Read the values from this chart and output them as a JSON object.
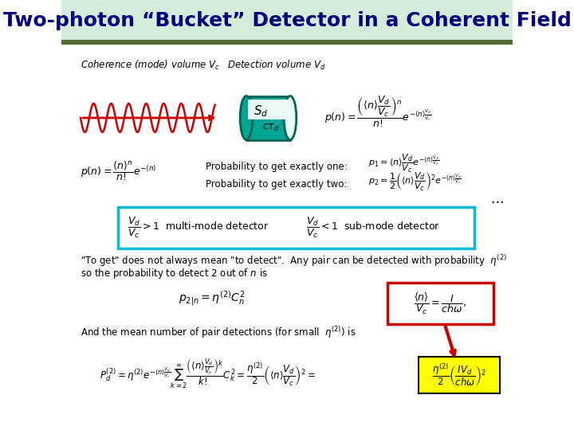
{
  "title": "Two-photon “Bucket” Detector in a Coherent Field",
  "title_fontsize": 18,
  "title_bg_color": "#d4edda",
  "title_text_color": "#000080",
  "bg_color": "#ffffff",
  "header_bar_color": "#556b2f",
  "coherence_label": "Coherence (mode) volume $V_c$",
  "detection_label": "Detection volume $V_d$",
  "sd_label": "$S_d$",
  "ctd_label": "$c\\tau_d$",
  "wave_color": "#cc0000",
  "arrow_color": "#cc0000",
  "detector_face_color": "#00a693",
  "detector_edge_color": "#006450",
  "detector_inner_color": "#e8f8f5",
  "cyan_box_color": "#00bcd4",
  "red_box_color": "#cc0000",
  "yellow_box_color": "#ffff00",
  "red_arrow_color": "#cc0000"
}
